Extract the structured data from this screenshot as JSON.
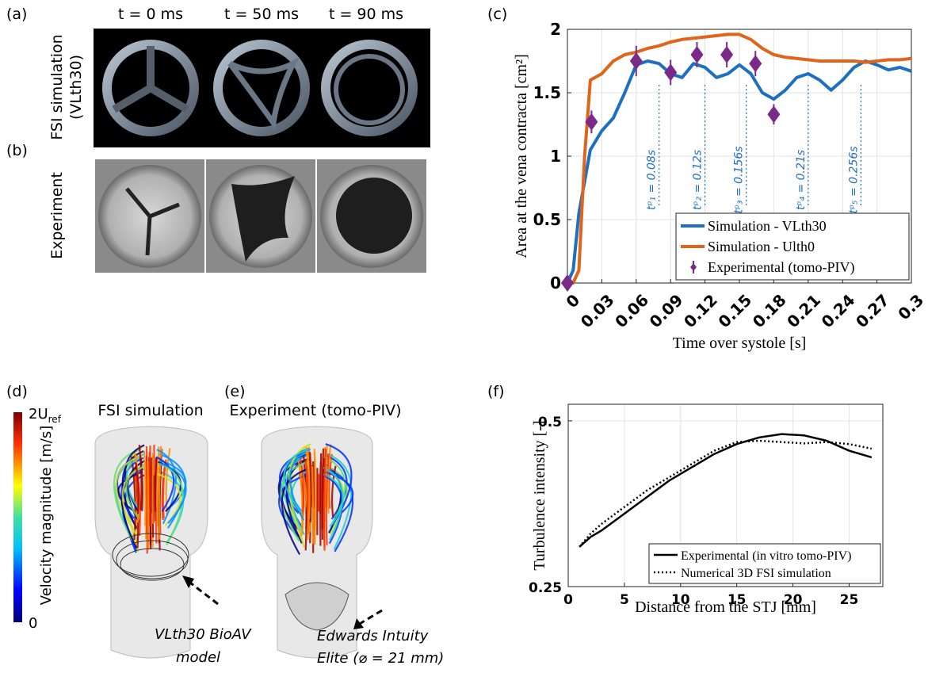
{
  "figure": {
    "panel_labels": [
      "(a)",
      "(b)",
      "(c)",
      "(d)",
      "(e)",
      "(f)"
    ],
    "time_labels": [
      "t = 0 ms",
      "t = 50 ms",
      "t = 90 ms"
    ],
    "row_labels": [
      "FSI simulation",
      "(VLth30)",
      "Experiment"
    ],
    "panel_titles": [
      "FSI simulation",
      "Experiment (tomo-PIV)"
    ],
    "callouts": [
      [
        "VLth30 BioAV",
        "model"
      ],
      [
        "Edwards Intuity",
        "Elite (⌀ = 21 mm)"
      ]
    ],
    "colorbar": {
      "max_label": "2U",
      "max_sub": "ref",
      "min_label": "0",
      "title": "Velocity magnitude [m/s]"
    }
  },
  "chart_data": [
    {
      "type": "line",
      "xlabel": "Time over systole [s]",
      "ylabel": "Area at the vena contracta [cm²]",
      "x": [
        0,
        0.005,
        0.01,
        0.015,
        0.02,
        0.03,
        0.04,
        0.05,
        0.06,
        0.07,
        0.08,
        0.09,
        0.1,
        0.11,
        0.12,
        0.13,
        0.14,
        0.15,
        0.16,
        0.17,
        0.18,
        0.19,
        0.2,
        0.21,
        0.22,
        0.23,
        0.24,
        0.25,
        0.26,
        0.27,
        0.28,
        0.29,
        0.3
      ],
      "series": [
        {
          "name": "Simulation - VLth30",
          "color": "#1f6fc0",
          "style": "solid",
          "values": [
            0,
            0.1,
            0.55,
            0.8,
            1.05,
            1.2,
            1.3,
            1.5,
            1.72,
            1.75,
            1.73,
            1.65,
            1.62,
            1.73,
            1.7,
            1.62,
            1.65,
            1.72,
            1.65,
            1.5,
            1.45,
            1.52,
            1.62,
            1.65,
            1.6,
            1.52,
            1.6,
            1.7,
            1.75,
            1.72,
            1.68,
            1.7,
            1.67
          ]
        },
        {
          "name": "Simulation - Ulth0",
          "color": "#e0641a",
          "style": "solid",
          "values": [
            0,
            0,
            0.1,
            1.0,
            1.6,
            1.65,
            1.75,
            1.8,
            1.82,
            1.85,
            1.87,
            1.9,
            1.92,
            1.93,
            1.94,
            1.95,
            1.96,
            1.96,
            1.92,
            1.85,
            1.8,
            1.78,
            1.77,
            1.76,
            1.75,
            1.75,
            1.75,
            1.75,
            1.74,
            1.75,
            1.76,
            1.76,
            1.77
          ]
        },
        {
          "name": "Experimental (tomo-PIV)",
          "color": "#7b2a8a",
          "style": "errorbar",
          "x": [
            0,
            0.021,
            0.06,
            0.09,
            0.113,
            0.139,
            0.164,
            0.18
          ],
          "values": [
            0,
            1.27,
            1.75,
            1.66,
            1.8,
            1.8,
            1.73,
            1.33
          ],
          "errors": [
            0,
            0.09,
            0.12,
            0.1,
            0.1,
            0.1,
            0.1,
            0.08
          ]
        }
      ],
      "annotations": [
        {
          "x": 0.08,
          "label": "tᵖ₁ = 0.08s"
        },
        {
          "x": 0.12,
          "label": "tᵖ₂ = 0.12s"
        },
        {
          "x": 0.156,
          "label": "tᵖ₃ = 0.156s"
        },
        {
          "x": 0.21,
          "label": "tᵖ₄ = 0.21s"
        },
        {
          "x": 0.256,
          "label": "tᵖ₅ = 0.256s"
        }
      ],
      "xlim": [
        0,
        0.3
      ],
      "ylim": [
        0,
        2
      ],
      "xticks": [
        0,
        0.03,
        0.06,
        0.09,
        0.12,
        0.15,
        0.18,
        0.21,
        0.24,
        0.27,
        0.3
      ],
      "yticks": [
        0,
        0.5,
        1,
        1.5,
        2
      ],
      "grid": true,
      "legend": "lower right"
    },
    {
      "type": "line",
      "xlabel": "Distance from the STJ [mm]",
      "ylabel": "Turbulence intensity [-]",
      "x": [
        1,
        2,
        3,
        5,
        7,
        9,
        11,
        13,
        15,
        17,
        19,
        21,
        23,
        25,
        27
      ],
      "series": [
        {
          "name": "Experimental (in vitro tomo-PIV)",
          "color": "#000000",
          "style": "solid",
          "values": [
            0.31,
            0.325,
            0.335,
            0.36,
            0.385,
            0.41,
            0.43,
            0.45,
            0.465,
            0.475,
            0.48,
            0.478,
            0.47,
            0.455,
            0.445
          ]
        },
        {
          "name": "Numerical 3D FSI simulation",
          "color": "#000000",
          "style": "dotted",
          "values": [
            0.31,
            0.33,
            0.345,
            0.37,
            0.395,
            0.415,
            0.435,
            0.455,
            0.468,
            0.47,
            0.468,
            0.466,
            0.468,
            0.465,
            0.458
          ]
        }
      ],
      "xlim": [
        0,
        28
      ],
      "ylim": [
        0.25,
        0.525
      ],
      "xticks": [
        0,
        5,
        10,
        15,
        20,
        25
      ],
      "yticks": [
        0.25,
        0.5
      ],
      "grid": true,
      "legend": "lower right"
    }
  ]
}
